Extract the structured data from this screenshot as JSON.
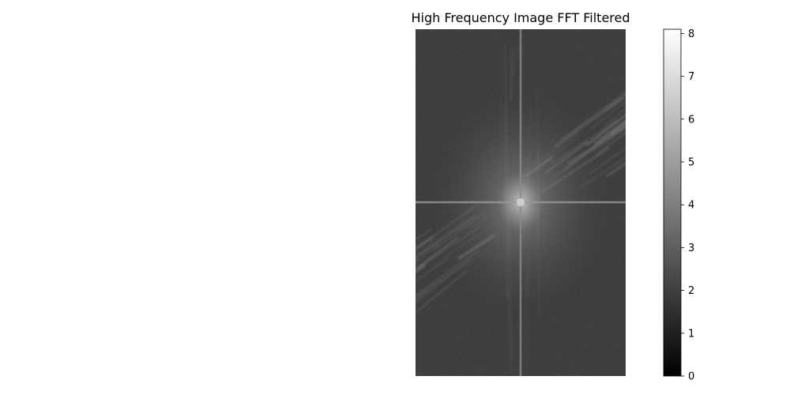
{
  "chart_data": {
    "type": "heatmap",
    "title": "High Frequency Image FFT Filtered",
    "axes_visible": false,
    "colormap": "gray",
    "colorbar": {
      "min": 0,
      "max": 8.1,
      "ticks": [
        0,
        1,
        2,
        3,
        4,
        5,
        6,
        7,
        8
      ]
    },
    "features": {
      "background_level": 1.6,
      "center_peak": 6.5,
      "horizontal_axis_line": 4.5,
      "vertical_axis_line": 4.2,
      "diagonal_streaks": "bottom-left to top-right"
    }
  }
}
